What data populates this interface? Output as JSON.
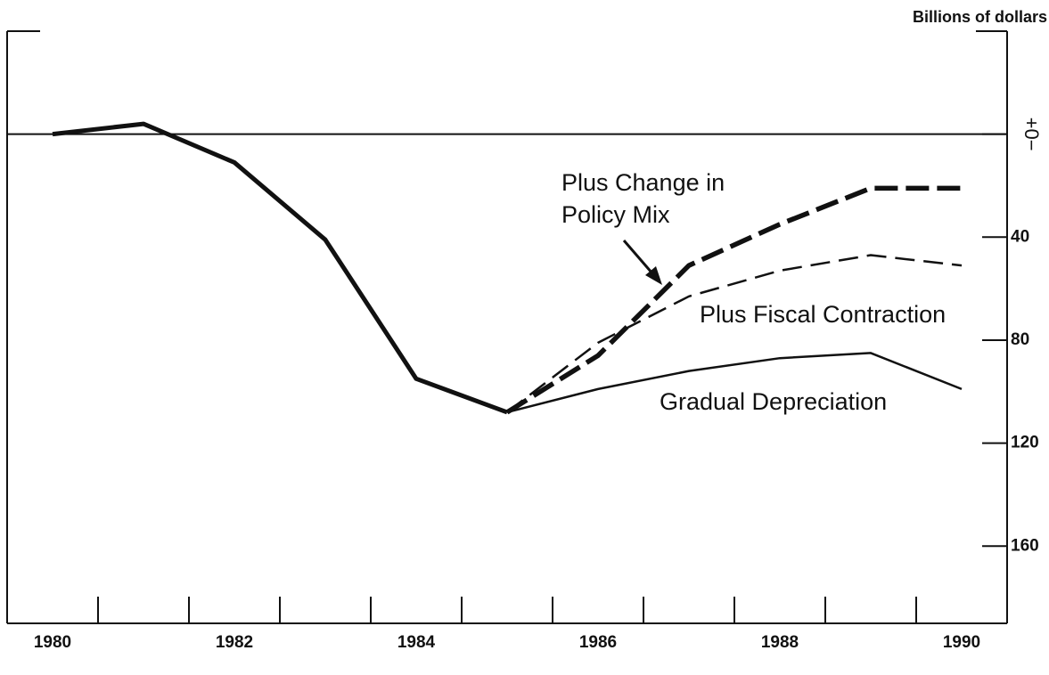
{
  "chart_data": {
    "type": "line",
    "y_label": "Billions of dollars",
    "x": [
      1980,
      1981,
      1982,
      1983,
      1984,
      1985,
      1986,
      1987,
      1988,
      1989,
      1990
    ],
    "xlim": [
      1979.5,
      1990.5
    ],
    "xticks": [
      1980,
      1982,
      1984,
      1986,
      1988,
      1990
    ],
    "xtick_marks": [
      1980.5,
      1981.5,
      1982.5,
      1983.5,
      1984.5,
      1985.5,
      1986.5,
      1987.5,
      1988.5,
      1989.5
    ],
    "ylim": [
      -40,
      190
    ],
    "y_inverted": true,
    "yticks": [
      {
        "value": 0,
        "label": "+0−"
      },
      40,
      80,
      120,
      160
    ],
    "series": [
      {
        "color": "#111",
        "width": 5,
        "dash": "none",
        "values": [
          0,
          -4,
          11,
          41,
          95,
          108,
          null,
          null,
          null,
          null,
          null
        ]
      },
      {
        "color": "#111",
        "width": 2.5,
        "dash": "none",
        "values": [
          null,
          null,
          null,
          null,
          null,
          108,
          99,
          92,
          87,
          85,
          99
        ]
      },
      {
        "color": "#111",
        "width": 2.5,
        "dash": "22 10",
        "values": [
          null,
          null,
          null,
          null,
          null,
          108,
          81,
          63,
          53,
          47,
          51
        ]
      },
      {
        "color": "#111",
        "width": 5.5,
        "dash": "26 9",
        "values": [
          null,
          null,
          null,
          null,
          null,
          108,
          86,
          51,
          35,
          21,
          21
        ]
      }
    ],
    "annotations": [
      "Plus Change in",
      "Policy Mix",
      "Plus Fiscal Contraction",
      "Gradual Depreciation"
    ]
  }
}
